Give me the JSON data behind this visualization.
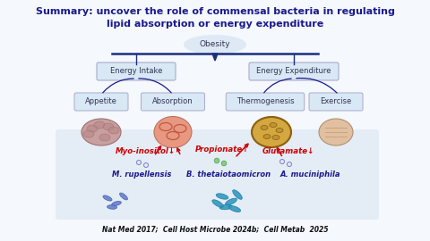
{
  "title_line1": "Summary: uncover the role of commensal bacteria in regulating",
  "title_line2": "lipid absorption or energy expenditure",
  "title_color": "#1a1a8c",
  "slide_bg": "#f5f8fc",
  "obesity_label": "Obesity",
  "energy_intake_label": "Energy Intake",
  "energy_expenditure_label": "Energy Expenditure",
  "appetite_label": "Appetite",
  "absorption_label": "Absorption",
  "thermogenesis_label": "Thermogenesis",
  "exercise_label": "Exercise",
  "compound1": "Myo-inositol↓",
  "compound2": "Propionate↑",
  "compound3": "Glutamate↓",
  "bacteria1": "M. rupellensis",
  "bacteria2": "B. thetaiotaomicron",
  "bacteria3": "A. muciniphila",
  "citation": "Nat Med 2017;  Cell Host Microbe 2024b;  Cell Metab  2025",
  "compound_color": "#cc0000",
  "bacteria_color": "#1a1a8c",
  "arrow_color": "#cc0000",
  "tree_color": "#1a1a8c",
  "box_face": "#d8e8f5",
  "box_edge": "#aaaacc",
  "panel_bg": "#dce8f0",
  "beam_color": "#1a3080",
  "brain_face": "#c8a0a0",
  "intestine_face": "#e89080",
  "fat_face": "#d4a840",
  "arm_face": "#e0c8b0",
  "bacteria_rod1": "#6680cc",
  "bacteria_rod2": "#3399bb"
}
